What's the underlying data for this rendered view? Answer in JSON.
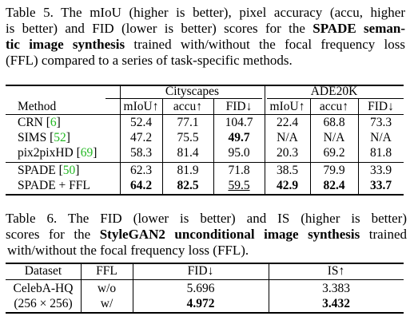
{
  "table5": {
    "caption": {
      "label": "Table 5.",
      "text_a": " The mIoU (higher is better), pixel accuracy (accu, higher is better) and FID (lower is better) scores for the ",
      "bold": "SPADE semantic image synthesis",
      "text_b": " trained with/without the focal frequency loss (FFL) compared to a series of task-specific methods."
    },
    "groups": [
      "Cityscapes",
      "ADE20K"
    ],
    "headers": [
      "Method",
      "mIoU↑",
      "accu↑",
      "FID↓",
      "mIoU↑",
      "accu↑",
      "FID↓"
    ],
    "rows": [
      {
        "name": "CRN",
        "ref": "6",
        "cells": [
          "52.4",
          "77.1",
          "104.7",
          "22.4",
          "68.8",
          "73.3"
        ]
      },
      {
        "name": "SIMS",
        "ref": "52",
        "cells": [
          "47.2",
          "75.5",
          "49.7",
          "N/A",
          "N/A",
          "N/A"
        ]
      },
      {
        "name": "pix2pixHD",
        "ref": "69",
        "cells": [
          "58.3",
          "81.4",
          "95.0",
          "20.3",
          "69.2",
          "81.8"
        ]
      },
      {
        "name": "SPADE",
        "ref": "50",
        "cells": [
          "62.3",
          "81.9",
          "71.8",
          "38.5",
          "79.9",
          "33.9"
        ]
      },
      {
        "name": "SPADE + FFL",
        "ref": "",
        "cells": [
          "64.2",
          "82.5",
          "59.5",
          "42.9",
          "82.4",
          "33.7"
        ]
      }
    ]
  },
  "table6": {
    "caption": {
      "label": "Table 6.",
      "text_a": " The FID (lower is better) and IS (higher is better) scores for the ",
      "bold": "StyleGAN2 unconditional image synthesis",
      "text_b": " trained with/without the focal frequency loss (FFL)."
    },
    "headers": [
      "Dataset",
      "FFL",
      "FID↓",
      "IS↑"
    ],
    "dataset_lines": [
      "CelebA-HQ",
      "(256 × 256)"
    ],
    "rows": [
      {
        "ffl": "w/o",
        "fid": "5.696",
        "is": "3.383"
      },
      {
        "ffl": "w/",
        "fid": "4.972",
        "is": "3.432"
      }
    ]
  }
}
